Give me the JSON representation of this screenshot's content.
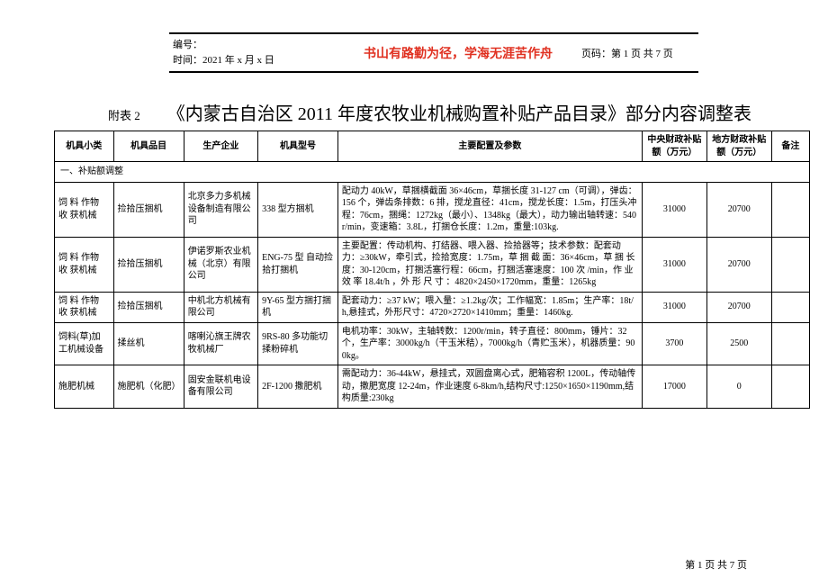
{
  "header": {
    "line1": "编号：",
    "line2": "时间：2021 年 x 月 x 日",
    "center": "书山有路勤为径，学海无涯苦作舟",
    "right": "页码：第 1 页 共 7 页"
  },
  "appendix": "附表 2",
  "title": "《内蒙古自治区 2011 年度农牧业机械购置补贴产品目录》部分内容调整表",
  "columns": {
    "c1": "机具小类",
    "c2": "机具品目",
    "c3": "生产企业",
    "c4": "机具型号",
    "c5": "主要配置及参数",
    "c6": "中央财政补贴额（万元）",
    "c7": "地方财政补贴额（万元）",
    "c8": "备注"
  },
  "section1": "一、补贴额调整",
  "rows": [
    {
      "sub": "饲 料 作物 收 获机械",
      "item": "捡拾压捆机",
      "mfr": "北京多力多机械设备制造有限公司",
      "model": "338 型方捆机",
      "spec": "配动力 40kW，草捆横截面 36×46cm，草捆长度 31-127 cm（可调），弹齿：156 个，弹齿条排数：6 排，搅龙直径：41cm，搅龙长度：1.5m，打压头冲程：76cm，捆绳：1272kg（最小）、1348kg（最大），动力输出轴转速：540r/min，变速箱：3.8L，打捆仓长度：1.2m，重量:103kg.",
      "central": "31000",
      "local": "20700",
      "note": ""
    },
    {
      "sub": "饲 料 作物 收 获机械",
      "item": "捡拾压捆机",
      "mfr": "伊诺罗斯农业机械（北京）有限公司",
      "model": "ENG-75 型 自动捡拾打捆机",
      "spec": "主要配置：传动机构、打结器、喂入器、捡拾器等；技术参数：配套动力：≥30kW，牵引式，捡拾宽度：1.75m，草 捆 截 面：36×46cm，草 捆 长 度：30-120cm，打捆活塞行程：66cm，打捆活塞速度：100 次 /min，作 业 效 率 18.4t/h ，外 形 尺 寸 ：4820×2450×1720mm，重量：1265kg",
      "central": "31000",
      "local": "20700",
      "note": ""
    },
    {
      "sub": "饲 料 作物 收 获机械",
      "item": "捡拾压捆机",
      "mfr": "中机北方机械有限公司",
      "model": "9Y-65 型方捆打捆机",
      "spec": "配套动力：≥37 kW；喂入量：≥1.2kg/次；工作幅宽：1.85m；生产率：18t/h,悬挂式，外形尺寸：4720×2720×1410mm；重量：1460kg.",
      "central": "31000",
      "local": "20700",
      "note": ""
    },
    {
      "sub": "饲料(草)加工机械设备",
      "item": "揉丝机",
      "mfr": "喀喇沁旗王牌农牧机械厂",
      "model": "9RS-80 多功能切揉粉碎机",
      "spec": "电机功率：30kW，主轴转数：1200r/min，转子直径：800mm，锤片：32 个，生产率：3000kg/h（干玉米秸），7000kg/h（青贮玉米），机器质量：900kg。",
      "central": "3700",
      "local": "2500",
      "note": ""
    },
    {
      "sub": "施肥机械",
      "item": "施肥机（化肥）",
      "mfr": "固安金联机电设备有限公司",
      "model": "2F-1200 撒肥机",
      "spec": "需配动力：36-44kW，悬挂式，双圆盘离心式，肥箱容积 1200L，传动轴传动，撒肥宽度 12-24m，作业速度 6-8km/h,结构尺寸:1250×1650×1190mm,结构质量:230kg",
      "central": "17000",
      "local": "0",
      "note": ""
    }
  ],
  "footer": "第 1 页 共 7 页"
}
